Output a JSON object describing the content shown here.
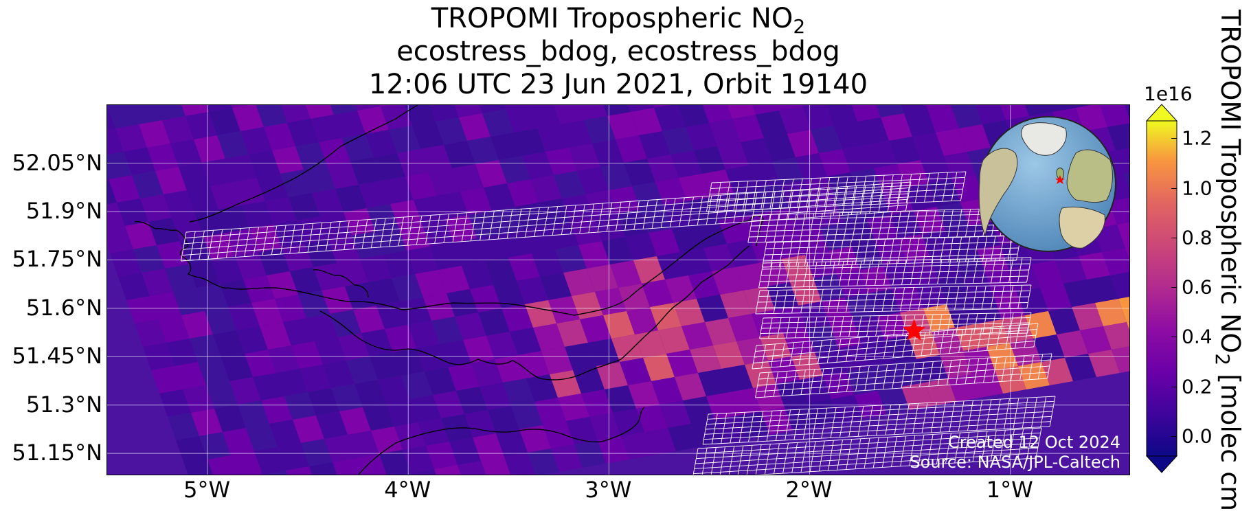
{
  "title": {
    "line1_pre": "TROPOMI Tropospheric NO",
    "line1_sub": "2",
    "line2": "ecostress_bdog, ecostress_bdog",
    "line3": "12:06 UTC 23 Jun 2021, Orbit 19140"
  },
  "map": {
    "lon_range": [
      -5.5,
      -0.4
    ],
    "lat_range": [
      51.08,
      52.23
    ],
    "lat_ticks": [
      "52.05°N",
      "51.9°N",
      "51.75°N",
      "51.6°N",
      "51.45°N",
      "51.3°N",
      "51.15°N"
    ],
    "lat_tick_values": [
      52.05,
      51.9,
      51.75,
      51.6,
      51.45,
      51.3,
      51.15
    ],
    "lon_ticks": [
      "5°W",
      "4°W",
      "3°W",
      "2°W",
      "1°W"
    ],
    "lon_tick_values": [
      -5,
      -4,
      -3,
      -2,
      -1
    ],
    "gridlines": true,
    "background_colormap": "plasma",
    "site_marker": {
      "symbol": "red-star",
      "lon": -1.48,
      "lat": 51.53,
      "color": "#ff0000"
    },
    "swath_outline_color": "#ffffff",
    "coastline_color": "#000000",
    "inset_globe": {
      "position": "top-right",
      "ocean_color": "#6ea6cf",
      "land_color": "#d8d2b8",
      "marker": "red-star"
    }
  },
  "credits": {
    "created": "Created 12 Oct 2024",
    "source": "Source: NASA/JPL-Caltech"
  },
  "colorbar": {
    "exponent": "1e16",
    "ticks": [
      "0.0",
      "0.2",
      "0.4",
      "0.6",
      "0.8",
      "1.0",
      "1.2"
    ],
    "tick_values": [
      0.0,
      0.2,
      0.4,
      0.6,
      0.8,
      1.0,
      1.2
    ],
    "range": [
      -0.08,
      1.27
    ],
    "extend": "both",
    "label_pre": "TROPOMI Tropospheric NO",
    "label_sub": "2",
    "label_post": " [molec cm"
  },
  "chart_data": {
    "type": "heatmap",
    "title": "TROPOMI Tropospheric NO2 / ecostress_bdog, ecostress_bdog / 12:06 UTC 23 Jun 2021, Orbit 19140",
    "xlabel": "",
    "ylabel": "",
    "x_ticks": [
      "5°W",
      "4°W",
      "3°W",
      "2°W",
      "1°W"
    ],
    "y_ticks": [
      "52.05°N",
      "51.9°N",
      "51.75°N",
      "51.6°N",
      "51.45°N",
      "51.3°N",
      "51.15°N"
    ],
    "colorbar_ticks": [
      0.0,
      0.2,
      0.4,
      0.6,
      0.8,
      1.0,
      1.2
    ],
    "colorbar_scale": "1e16"
  }
}
